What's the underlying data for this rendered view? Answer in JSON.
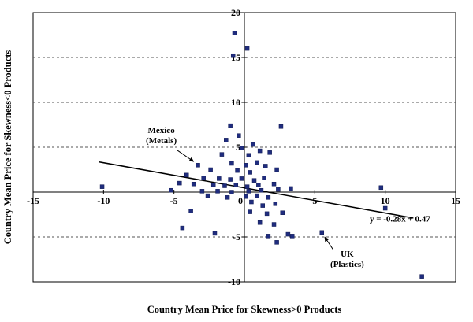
{
  "chart_data": {
    "type": "scatter",
    "title": "",
    "xlabel": "Country Mean Price for Skewness>0 Products",
    "ylabel": "Country Mean Price for Skewness<0 Products",
    "xlim": [
      -15,
      15
    ],
    "ylim": [
      -10,
      20
    ],
    "x_ticks": [
      -15,
      -10,
      -5,
      0,
      5,
      10,
      15
    ],
    "y_ticks": [
      20,
      15,
      10,
      5,
      0,
      -5,
      -10
    ],
    "grid": "horizontal-dashed",
    "legend": "none",
    "marker": "square",
    "point_color": "#1F2C7E",
    "trendline_color": "#000000",
    "points": [
      [
        -0.7,
        17.7
      ],
      [
        0.2,
        16.0
      ],
      [
        -0.8,
        15.2
      ],
      [
        -1.0,
        7.4
      ],
      [
        2.6,
        7.3
      ],
      [
        -0.4,
        6.3
      ],
      [
        -1.3,
        5.8
      ],
      [
        0.6,
        5.3
      ],
      [
        -0.2,
        4.9
      ],
      [
        1.1,
        4.6
      ],
      [
        -1.6,
        4.2
      ],
      [
        0.3,
        4.1
      ],
      [
        1.8,
        4.4
      ],
      [
        -3.3,
        3.0
      ],
      [
        -0.9,
        3.2
      ],
      [
        0.1,
        3.0
      ],
      [
        0.9,
        3.3
      ],
      [
        1.5,
        2.9
      ],
      [
        -2.4,
        2.5
      ],
      [
        -0.5,
        2.4
      ],
      [
        0.4,
        2.2
      ],
      [
        2.3,
        2.5
      ],
      [
        -4.1,
        1.9
      ],
      [
        -2.9,
        1.6
      ],
      [
        -1.8,
        1.5
      ],
      [
        -1.0,
        1.4
      ],
      [
        -0.2,
        1.5
      ],
      [
        0.7,
        1.3
      ],
      [
        1.4,
        1.6
      ],
      [
        -4.6,
        1.0
      ],
      [
        -3.6,
        0.9
      ],
      [
        -2.2,
        0.8
      ],
      [
        -1.4,
        0.7
      ],
      [
        -0.6,
        0.8
      ],
      [
        0.2,
        0.6
      ],
      [
        1.0,
        0.8
      ],
      [
        2.1,
        0.9
      ],
      [
        -10.1,
        0.6
      ],
      [
        9.7,
        0.5
      ],
      [
        -5.2,
        0.2
      ],
      [
        -3.0,
        0.1
      ],
      [
        -1.9,
        0.1
      ],
      [
        -0.9,
        0.0
      ],
      [
        0.3,
        0.1
      ],
      [
        1.2,
        0.2
      ],
      [
        2.4,
        0.3
      ],
      [
        3.3,
        0.4
      ],
      [
        -2.6,
        -0.4
      ],
      [
        -1.2,
        -0.6
      ],
      [
        0.1,
        -0.5
      ],
      [
        0.9,
        -0.4
      ],
      [
        1.7,
        -0.6
      ],
      [
        0.5,
        -1.1
      ],
      [
        1.3,
        -1.5
      ],
      [
        2.2,
        -1.3
      ],
      [
        10.0,
        -1.8
      ],
      [
        -3.8,
        -2.1
      ],
      [
        0.4,
        -2.2
      ],
      [
        1.6,
        -2.4
      ],
      [
        2.7,
        -2.3
      ],
      [
        1.1,
        -3.4
      ],
      [
        2.1,
        -3.6
      ],
      [
        -4.4,
        -4.0
      ],
      [
        -2.1,
        -4.6
      ],
      [
        1.7,
        -4.9
      ],
      [
        2.3,
        -5.6
      ],
      [
        3.1,
        -4.7
      ],
      [
        3.4,
        -4.9
      ],
      [
        5.5,
        -4.5
      ],
      [
        12.6,
        -9.4
      ]
    ],
    "trendline": {
      "equation_label": "y = -0.28x + 0.47",
      "slope": -0.28,
      "intercept": 0.47,
      "x_start": -10.3,
      "x_end": 12.0,
      "label_pos": [
        8.9,
        -3.3
      ]
    },
    "annotations": [
      {
        "lines": [
          "Mexico",
          "(Metals)"
        ],
        "text_pos": [
          -5.9,
          6.6
        ],
        "arrow_from": [
          -4.8,
          4.7
        ],
        "arrow_to": [
          -3.6,
          3.4
        ]
      },
      {
        "lines": [
          "UK",
          "(Plastics)"
        ],
        "text_pos": [
          7.3,
          -7.2
        ],
        "arrow_from": [
          6.3,
          -6.4
        ],
        "arrow_to": [
          5.7,
          -5.0
        ]
      }
    ]
  }
}
